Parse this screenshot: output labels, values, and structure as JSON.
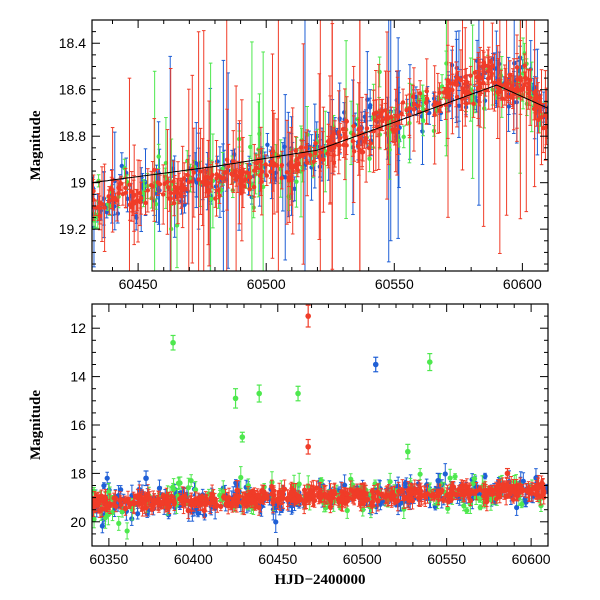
{
  "colors": {
    "blue": "#1f5fd6",
    "red": "#f03c28",
    "green": "#4ee84e",
    "model": "#000000"
  },
  "chart_data": [
    {
      "type": "scatter",
      "title": "",
      "xlabel": "",
      "ylabel": "Magnitude",
      "xlim": [
        60432,
        60610
      ],
      "ylim": [
        19.38,
        18.3
      ],
      "y_inverted": true,
      "x_ticks": [
        60450,
        60500,
        60550,
        60600
      ],
      "x_tick_labels": [
        "60450",
        "60500",
        "60550",
        "60600"
      ],
      "y_ticks": [
        18.4,
        18.6,
        18.8,
        19,
        19.2
      ],
      "y_tick_labels": [
        "18.4",
        "18.6",
        "18.8",
        "19",
        "19.2"
      ],
      "model_line": {
        "x": [
          60432,
          60480,
          60520,
          60560,
          60590,
          60610
        ],
        "y": [
          19.0,
          18.93,
          18.86,
          18.7,
          18.58,
          18.68
        ]
      },
      "trend": {
        "x": [
          60432,
          60480,
          60510,
          60530,
          60560,
          60585,
          60600,
          60608
        ],
        "y": [
          19.08,
          18.98,
          18.92,
          18.82,
          18.68,
          18.55,
          18.58,
          18.68
        ]
      },
      "series": [
        {
          "color": "blue",
          "density": 1.3,
          "scatter": 0.05
        },
        {
          "color": "green",
          "density": 0.7,
          "scatter": 0.06
        },
        {
          "color": "red",
          "density": 2.2,
          "scatter": 0.03
        }
      ]
    },
    {
      "type": "scatter",
      "title": "",
      "xlabel": "HJD−2400000",
      "ylabel": "Magnitude",
      "xlim": [
        60340,
        60610
      ],
      "ylim": [
        21,
        11
      ],
      "y_inverted": true,
      "x_ticks": [
        60350,
        60400,
        60450,
        60500,
        60550,
        60600
      ],
      "x_tick_labels": [
        "60350",
        "60400",
        "60450",
        "60500",
        "60550",
        "60600"
      ],
      "y_ticks": [
        12,
        14,
        16,
        18,
        20
      ],
      "y_tick_labels": [
        "12",
        "14",
        "16",
        "18",
        "20"
      ],
      "trend": {
        "x": [
          60345,
          60400,
          60450,
          60500,
          60550,
          60608
        ],
        "y": [
          19.2,
          19.15,
          19.0,
          18.95,
          18.8,
          18.65
        ]
      },
      "series": [
        {
          "color": "blue",
          "density": 1.0,
          "scatter": 0.3
        },
        {
          "color": "green",
          "density": 0.6,
          "scatter": 0.35
        },
        {
          "color": "red",
          "density": 1.8,
          "scatter": 0.15
        }
      ],
      "outliers": [
        {
          "x": 60388,
          "y": 12.6,
          "err": 0.3,
          "color": "green"
        },
        {
          "x": 60425,
          "y": 14.9,
          "err": 0.4,
          "color": "green"
        },
        {
          "x": 60429,
          "y": 16.5,
          "err": 0.2,
          "color": "green"
        },
        {
          "x": 60439,
          "y": 14.7,
          "err": 0.35,
          "color": "green"
        },
        {
          "x": 60462,
          "y": 14.7,
          "err": 0.3,
          "color": "green"
        },
        {
          "x": 60468,
          "y": 11.5,
          "err": 0.45,
          "color": "red"
        },
        {
          "x": 60468,
          "y": 16.9,
          "err": 0.3,
          "color": "red"
        },
        {
          "x": 60508,
          "y": 13.5,
          "err": 0.3,
          "color": "blue"
        },
        {
          "x": 60540,
          "y": 13.4,
          "err": 0.35,
          "color": "green"
        },
        {
          "x": 60527,
          "y": 17.1,
          "err": 0.3,
          "color": "green"
        },
        {
          "x": 60392,
          "y": 18.4,
          "err": 0.25,
          "color": "green"
        },
        {
          "x": 60372,
          "y": 18.2,
          "err": 0.3,
          "color": "blue"
        },
        {
          "x": 60586,
          "y": 18.0,
          "err": 0.2,
          "color": "red"
        },
        {
          "x": 60426,
          "y": 18.7,
          "err": 0.4,
          "color": "red"
        },
        {
          "x": 60545,
          "y": 18.3,
          "err": 0.3,
          "color": "blue"
        }
      ]
    }
  ]
}
